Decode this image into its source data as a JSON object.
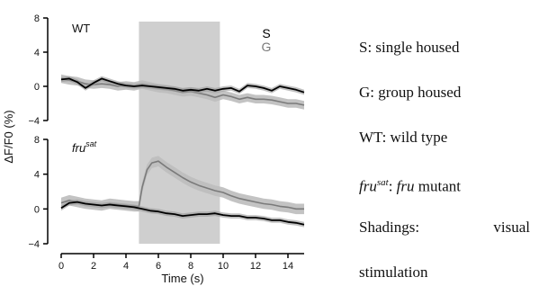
{
  "chart_data": {
    "type": "line",
    "xlabel": "Time (s)",
    "ylabel": "ΔF/F0 (%)",
    "xlim": [
      0,
      15
    ],
    "xticks": [
      "0",
      "2",
      "4",
      "6",
      "8",
      "10",
      "12",
      "14"
    ],
    "stimulation": {
      "start": 4.8,
      "end": 9.8,
      "color": "#cfcfcf"
    },
    "colors": {
      "S": "#000000",
      "G": "#7a7a7a",
      "G_band": "#bdbdbd"
    },
    "panels": [
      {
        "label": "WT",
        "ylim": [
          -4,
          8
        ],
        "yticks": [
          "8",
          "4",
          "0",
          "−4"
        ],
        "series_labels": {
          "S": "S",
          "G": "G"
        },
        "series": [
          {
            "name": "S",
            "band": 0.3,
            "x": [
              0,
              0.5,
              1,
              1.5,
              2,
              2.5,
              3,
              3.5,
              4,
              4.5,
              5,
              5.5,
              6,
              6.5,
              7,
              7.5,
              8,
              8.5,
              9,
              9.5,
              10,
              10.5,
              11,
              11.5,
              12,
              12.5,
              13,
              13.5,
              14,
              14.5,
              15
            ],
            "y": [
              0.8,
              0.9,
              0.5,
              -0.2,
              0.4,
              0.9,
              0.6,
              0.3,
              0.1,
              0.0,
              0.1,
              0.0,
              -0.1,
              -0.2,
              -0.3,
              -0.5,
              -0.4,
              -0.5,
              -0.3,
              -0.5,
              -0.3,
              -0.2,
              -0.6,
              0.1,
              0.0,
              -0.2,
              -0.5,
              0.0,
              -0.2,
              -0.4,
              -0.7
            ]
          },
          {
            "name": "G",
            "band": 0.5,
            "x": [
              0,
              0.5,
              1,
              1.5,
              2,
              2.5,
              3,
              3.5,
              4,
              4.5,
              5,
              5.5,
              6,
              6.5,
              7,
              7.5,
              8,
              8.5,
              9,
              9.5,
              10,
              10.5,
              11,
              11.5,
              12,
              12.5,
              13,
              13.5,
              14,
              14.5,
              15
            ],
            "y": [
              0.9,
              0.7,
              0.6,
              0.3,
              0.2,
              0.3,
              0.2,
              0.0,
              0.1,
              0.0,
              0.2,
              0.0,
              -0.2,
              -0.3,
              -0.5,
              -0.7,
              -0.6,
              -0.8,
              -1.0,
              -1.3,
              -1.0,
              -1.2,
              -1.5,
              -1.3,
              -1.5,
              -1.5,
              -1.6,
              -1.8,
              -2.0,
              -2.0,
              -2.2
            ]
          }
        ]
      },
      {
        "label": "fru",
        "label_sup": "sat",
        "ylim": [
          -4,
          8
        ],
        "yticks": [
          "8",
          "4",
          "0",
          "−4"
        ],
        "series": [
          {
            "name": "S",
            "band": 0.3,
            "x": [
              0,
              0.5,
              1,
              1.5,
              2,
              2.5,
              3,
              3.5,
              4,
              4.5,
              5,
              5.5,
              6,
              6.5,
              7,
              7.5,
              8,
              8.5,
              9,
              9.5,
              10,
              10.5,
              11,
              11.5,
              12,
              12.5,
              13,
              13.5,
              14,
              14.5,
              15
            ],
            "y": [
              0.1,
              0.7,
              0.8,
              0.6,
              0.5,
              0.4,
              0.5,
              0.4,
              0.3,
              0.2,
              0.0,
              -0.2,
              -0.3,
              -0.5,
              -0.6,
              -0.8,
              -0.7,
              -0.6,
              -0.6,
              -0.5,
              -0.7,
              -0.8,
              -0.8,
              -1.0,
              -1.0,
              -1.1,
              -1.3,
              -1.3,
              -1.5,
              -1.6,
              -1.8
            ]
          },
          {
            "name": "G",
            "band": 0.6,
            "x": [
              0,
              0.5,
              1,
              1.5,
              2,
              2.5,
              3,
              3.5,
              4,
              4.5,
              4.8,
              5.0,
              5.3,
              5.6,
              6,
              6.5,
              7,
              7.5,
              8,
              8.5,
              9,
              9.5,
              10,
              10.5,
              11,
              11.5,
              12,
              12.5,
              13,
              13.5,
              14,
              14.5,
              15
            ],
            "y": [
              0.7,
              1.0,
              0.8,
              0.6,
              0.5,
              0.4,
              0.6,
              0.5,
              0.4,
              0.3,
              0.3,
              2.5,
              4.5,
              5.3,
              5.5,
              4.8,
              4.2,
              3.6,
              3.1,
              2.7,
              2.4,
              2.1,
              1.9,
              1.5,
              1.2,
              1.0,
              0.8,
              0.6,
              0.5,
              0.3,
              0.2,
              0.0,
              0.0
            ]
          }
        ]
      }
    ]
  },
  "legend": {
    "s_line": "S: single housed",
    "g_line": "G: group housed",
    "wt_line": "WT: wild type",
    "fru_term": "fru",
    "fru_sup": "sat",
    "fru_desc": ": fru mutant",
    "fru_desc_pre": ": ",
    "fru_desc_italic": "fru",
    "fru_desc_post": " mutant",
    "shadings_label": "Shadings:",
    "shadings_word": "visual",
    "shadings_cont": "stimulation"
  }
}
